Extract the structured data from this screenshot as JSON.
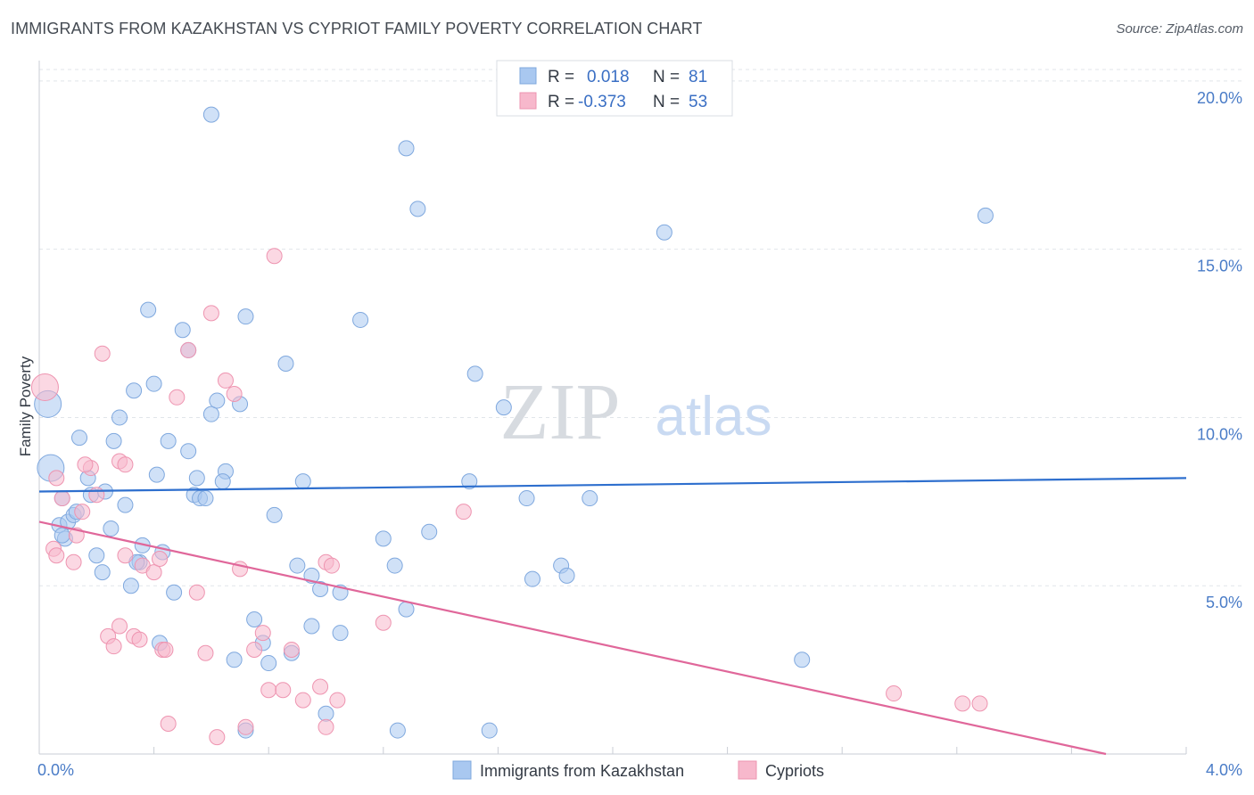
{
  "header": {
    "title": "IMMIGRANTS FROM KAZAKHSTAN VS CYPRIOT FAMILY POVERTY CORRELATION CHART",
    "source": "Source: ZipAtlas.com"
  },
  "watermark": {
    "zip": "ZIP",
    "atlas": "atlas"
  },
  "legend": {
    "rows": [
      {
        "r_label": "R =",
        "r_value": "0.018",
        "n_label": "N =",
        "n_value": "81"
      },
      {
        "r_label": "R =",
        "r_value": "-0.373",
        "n_label": "N =",
        "n_value": "53"
      }
    ]
  },
  "chart_data": {
    "type": "scatter",
    "title": "IMMIGRANTS FROM KAZAKHSTAN VS CYPRIOT FAMILY POVERTY CORRELATION CHART",
    "xlabel": "",
    "ylabel": "Family Poverty",
    "xlim": [
      0,
      4.0
    ],
    "ylim": [
      0,
      20.5
    ],
    "x_tick_labels": [
      "0.0%",
      "4.0%"
    ],
    "y_ticks": [
      5,
      10,
      15,
      20
    ],
    "y_tick_labels": [
      "5.0%",
      "10.0%",
      "15.0%",
      "20.0%"
    ],
    "grid": true,
    "legend_position": "top-center",
    "series": [
      {
        "name": "Immigrants from Kazakhstan",
        "color": "#a9c8f0",
        "stroke": "#7fa8de",
        "line_color": "#2e6fce",
        "trend": {
          "x": [
            0.0,
            4.0
          ],
          "y": [
            7.8,
            8.2
          ]
        },
        "points": [
          [
            0.03,
            10.4
          ],
          [
            0.04,
            8.5
          ],
          [
            0.07,
            6.8
          ],
          [
            0.08,
            7.6
          ],
          [
            0.09,
            6.4
          ],
          [
            0.1,
            6.9
          ],
          [
            0.12,
            7.1
          ],
          [
            0.08,
            6.5
          ],
          [
            0.18,
            7.7
          ],
          [
            0.17,
            8.2
          ],
          [
            0.25,
            6.7
          ],
          [
            0.26,
            9.3
          ],
          [
            0.28,
            10.0
          ],
          [
            0.3,
            7.4
          ],
          [
            0.32,
            5.0
          ],
          [
            0.35,
            5.7
          ],
          [
            0.33,
            10.8
          ],
          [
            0.38,
            13.2
          ],
          [
            0.41,
            8.3
          ],
          [
            0.43,
            6.0
          ],
          [
            0.5,
            12.6
          ],
          [
            0.52,
            9.0
          ],
          [
            0.55,
            8.2
          ],
          [
            0.54,
            7.7
          ],
          [
            0.56,
            7.6
          ],
          [
            0.6,
            10.1
          ],
          [
            0.62,
            10.5
          ],
          [
            0.65,
            8.4
          ],
          [
            0.68,
            2.8
          ],
          [
            0.72,
            13.0
          ],
          [
            0.75,
            4.0
          ],
          [
            0.78,
            3.3
          ],
          [
            0.82,
            7.1
          ],
          [
            0.86,
            11.6
          ],
          [
            0.88,
            3.0
          ],
          [
            0.9,
            5.6
          ],
          [
            0.95,
            5.3
          ],
          [
            0.98,
            4.9
          ],
          [
            1.05,
            4.8
          ],
          [
            1.12,
            12.9
          ],
          [
            1.2,
            6.4
          ],
          [
            1.24,
            5.6
          ],
          [
            1.28,
            4.3
          ],
          [
            1.36,
            6.6
          ],
          [
            1.52,
            11.3
          ],
          [
            1.5,
            8.1
          ],
          [
            1.62,
            10.3
          ],
          [
            1.7,
            7.6
          ],
          [
            1.72,
            5.2
          ],
          [
            1.82,
            5.6
          ],
          [
            1.84,
            5.3
          ],
          [
            1.92,
            7.6
          ],
          [
            0.6,
            19.0
          ],
          [
            1.28,
            18.0
          ],
          [
            1.32,
            16.2
          ],
          [
            2.18,
            15.5
          ],
          [
            3.3,
            16.0
          ],
          [
            0.72,
            0.7
          ],
          [
            1.25,
            0.7
          ],
          [
            1.57,
            0.7
          ],
          [
            0.13,
            7.2
          ],
          [
            0.2,
            5.9
          ],
          [
            0.22,
            5.4
          ],
          [
            0.14,
            9.4
          ],
          [
            0.4,
            11.0
          ],
          [
            0.45,
            9.3
          ],
          [
            0.52,
            12.0
          ],
          [
            0.42,
            3.3
          ],
          [
            0.64,
            8.1
          ],
          [
            0.8,
            2.7
          ],
          [
            0.95,
            3.8
          ],
          [
            1.05,
            3.6
          ],
          [
            1.0,
            1.2
          ],
          [
            0.34,
            5.7
          ],
          [
            2.66,
            2.8
          ],
          [
            0.58,
            7.6
          ],
          [
            0.7,
            10.4
          ],
          [
            0.23,
            7.8
          ],
          [
            0.36,
            6.2
          ],
          [
            0.47,
            4.8
          ],
          [
            0.92,
            8.1
          ]
        ],
        "big_points": [
          [
            0.03,
            10.4
          ],
          [
            0.04,
            8.5
          ]
        ]
      },
      {
        "name": "Cypriots",
        "color": "#f7b8cc",
        "stroke": "#ee94b0",
        "line_color": "#e0679a",
        "trend": {
          "x": [
            0.0,
            3.72
          ],
          "y": [
            6.9,
            0.0
          ]
        },
        "points": [
          [
            0.02,
            10.9
          ],
          [
            0.06,
            8.2
          ],
          [
            0.08,
            7.6
          ],
          [
            0.05,
            6.1
          ],
          [
            0.06,
            5.9
          ],
          [
            0.12,
            5.7
          ],
          [
            0.13,
            6.5
          ],
          [
            0.15,
            7.2
          ],
          [
            0.18,
            8.5
          ],
          [
            0.2,
            7.7
          ],
          [
            0.22,
            11.9
          ],
          [
            0.28,
            8.7
          ],
          [
            0.3,
            8.6
          ],
          [
            0.3,
            5.9
          ],
          [
            0.36,
            5.6
          ],
          [
            0.4,
            5.4
          ],
          [
            0.42,
            5.8
          ],
          [
            0.48,
            10.6
          ],
          [
            0.52,
            12.0
          ],
          [
            0.55,
            4.8
          ],
          [
            0.6,
            13.1
          ],
          [
            0.65,
            11.1
          ],
          [
            0.68,
            10.7
          ],
          [
            0.7,
            5.5
          ],
          [
            0.75,
            3.1
          ],
          [
            0.78,
            3.6
          ],
          [
            0.8,
            1.9
          ],
          [
            0.82,
            14.8
          ],
          [
            0.85,
            1.9
          ],
          [
            0.88,
            3.1
          ],
          [
            0.92,
            1.6
          ],
          [
            0.98,
            2.0
          ],
          [
            1.0,
            5.7
          ],
          [
            1.02,
            5.6
          ],
          [
            1.04,
            1.6
          ],
          [
            1.0,
            0.8
          ],
          [
            0.24,
            3.5
          ],
          [
            0.26,
            3.2
          ],
          [
            0.28,
            3.8
          ],
          [
            0.33,
            3.5
          ],
          [
            0.35,
            3.4
          ],
          [
            0.43,
            3.1
          ],
          [
            0.58,
            3.0
          ],
          [
            0.62,
            0.5
          ],
          [
            0.72,
            0.8
          ],
          [
            0.45,
            0.9
          ],
          [
            1.2,
            3.9
          ],
          [
            1.48,
            7.2
          ],
          [
            2.98,
            1.8
          ],
          [
            3.22,
            1.5
          ],
          [
            3.28,
            1.5
          ],
          [
            0.16,
            8.6
          ],
          [
            0.44,
            3.1
          ]
        ],
        "big_points": [
          [
            0.02,
            10.9
          ]
        ]
      }
    ]
  },
  "bottom_legend": {
    "items": [
      {
        "label": "Immigrants from Kazakhstan",
        "color": "#a9c8f0"
      },
      {
        "label": "Cypriots",
        "color": "#f7b8cc"
      }
    ]
  }
}
